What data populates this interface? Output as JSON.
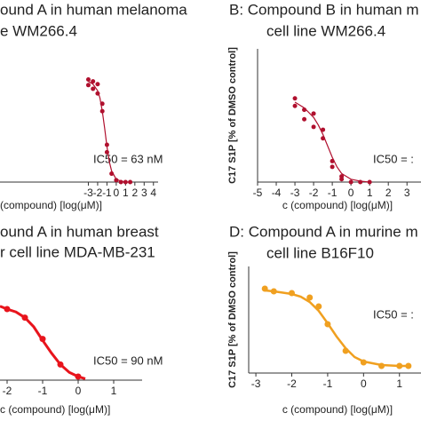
{
  "chart_data": [
    {
      "type": "scatter",
      "title": [
        "ound A in human melanoma",
        "e WM266.4"
      ],
      "annotation": "IC50 = 63 nM",
      "xlabel": "(compound) [log(μM)]",
      "xlim": [
        -12.5,
        4.5
      ],
      "ylim": [
        0,
        140
      ],
      "xticks": [
        -3,
        -2,
        -1,
        0,
        1,
        2,
        3,
        4
      ],
      "color": "#b0102e",
      "x": [
        -3,
        -3,
        -2.5,
        -2.5,
        -2,
        -2,
        -1.5,
        -1.5,
        -1,
        -1,
        -0.5,
        0,
        0.5,
        1,
        1.5
      ],
      "values": [
        110,
        104,
        108,
        100,
        105,
        95,
        84,
        76,
        40,
        32,
        9,
        2,
        0,
        0,
        0
      ],
      "fit": {
        "x": [
          -3,
          -2.5,
          -2,
          -1.75,
          -1.5,
          -1.25,
          -1,
          -0.75,
          -0.5,
          0,
          0.5,
          1,
          1.5
        ],
        "values": [
          108,
          105,
          98,
          90,
          76,
          58,
          38,
          22,
          12,
          3,
          1,
          0,
          0
        ]
      }
    },
    {
      "type": "scatter",
      "title": [
        "B:  Compound B in human m",
        "cell line WM266.4"
      ],
      "annotation": "IC50 = :",
      "xlabel": "c (compound) [log(μM)]",
      "ylabel": "C17 S1P [% of DMSO control]",
      "xlim": [
        -5,
        3.75
      ],
      "ylim": [
        0,
        140
      ],
      "xticks": [
        -5,
        -4,
        -3,
        -2,
        -1,
        0,
        1,
        2,
        3
      ],
      "color": "#b0102e",
      "x": [
        -3,
        -3,
        -2.5,
        -2.5,
        -2,
        -2,
        -1.5,
        -1.5,
        -1,
        -1,
        -0.5,
        -0.5,
        0,
        0.5,
        1
      ],
      "values": [
        88,
        80,
        76,
        66,
        72,
        58,
        55,
        46,
        22,
        16,
        6,
        3,
        0,
        0,
        0
      ],
      "fit": {
        "x": [
          -3,
          -2.5,
          -2,
          -1.75,
          -1.5,
          -1.25,
          -1,
          -0.75,
          -0.5,
          0,
          0.5,
          1
        ],
        "values": [
          84,
          78,
          68,
          60,
          50,
          38,
          26,
          16,
          9,
          3,
          1,
          0
        ]
      }
    },
    {
      "type": "scatter",
      "title": [
        "ound A in human breast",
        "r cell line MDA-MB-231"
      ],
      "annotation": "IC50 = 90 nM",
      "xlabel": "c (compound) [log(μM)]",
      "xlim": [
        -2.2,
        1.8
      ],
      "ylim": [
        0,
        160
      ],
      "xticks": [
        -2,
        -1,
        0,
        1
      ],
      "color": "#e8141c",
      "x": [
        -2,
        -1.5,
        -1,
        -0.5,
        0
      ],
      "values": [
        100,
        88,
        58,
        22,
        5
      ],
      "fit": {
        "x": [
          -2.2,
          -2,
          -1.75,
          -1.5,
          -1.25,
          -1,
          -0.75,
          -0.5,
          -0.25,
          0,
          0.2
        ],
        "values": [
          104,
          100,
          96,
          88,
          75,
          56,
          38,
          22,
          11,
          5,
          2
        ]
      }
    },
    {
      "type": "scatter",
      "title": [
        "D:  Compound A in murine m",
        "cell line B16F10"
      ],
      "annotation": "IC50 = :",
      "xlabel": "c (compound) [log(μM)]",
      "ylabel": "C17 S1P [% of DMSO control]",
      "xlim": [
        -3.2,
        1.6
      ],
      "ylim": [
        0,
        120
      ],
      "xticks": [
        -3,
        -2,
        -1,
        0,
        1
      ],
      "color": "#f0a020",
      "x": [
        -2.75,
        -2.5,
        -2,
        -1.5,
        -1.25,
        -1,
        -0.5,
        0,
        0.5,
        1,
        1.25
      ],
      "values": [
        95,
        92,
        90,
        85,
        75,
        55,
        25,
        12,
        8,
        8,
        8
      ],
      "fit": {
        "x": [
          -2.75,
          -2.5,
          -2,
          -1.75,
          -1.5,
          -1.25,
          -1,
          -0.75,
          -0.5,
          -0.25,
          0,
          0.5,
          1,
          1.25
        ],
        "values": [
          93,
          92,
          89,
          86,
          80,
          70,
          56,
          41,
          28,
          18,
          13,
          9,
          8,
          8
        ]
      }
    }
  ]
}
